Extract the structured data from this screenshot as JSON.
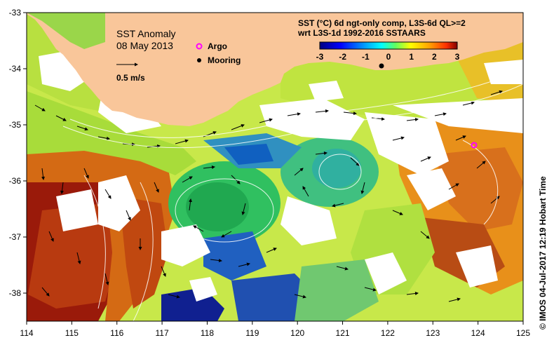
{
  "map": {
    "title": "SST Anomaly",
    "date": "08 May 2013",
    "velocity_scale_label": "0.5 m/s",
    "legend": {
      "argo_label": "Argo",
      "mooring_label": "Mooring"
    },
    "product_line1": "SST (°C) 6d ngt-only comp, L3S-6d QL>=2",
    "product_line2": "wrt L3S-1d 1992-2016 SSTAARS",
    "credit": "© IMOS 04-Jul-2017 12:19 Hobart Time",
    "longitude_ticks": [
      "114",
      "115",
      "116",
      "117",
      "118",
      "119",
      "120",
      "121",
      "122",
      "123",
      "124",
      "125"
    ],
    "latitude_ticks": [
      "-33",
      "-34",
      "-35",
      "-36",
      "-37",
      "-38"
    ],
    "colorbar": {
      "ticks": [
        "-3",
        "-2",
        "-1",
        "0",
        "1",
        "2",
        "3"
      ],
      "stops": [
        "#000080",
        "#0000ff",
        "#00a0ff",
        "#00ffff",
        "#60ff60",
        "#ffff00",
        "#ffa000",
        "#ff3000",
        "#800000"
      ]
    },
    "colors": {
      "land": "#f9c69a",
      "missing": "#ffffff",
      "argo": "#ff00ff",
      "mooring": "#000000"
    }
  }
}
